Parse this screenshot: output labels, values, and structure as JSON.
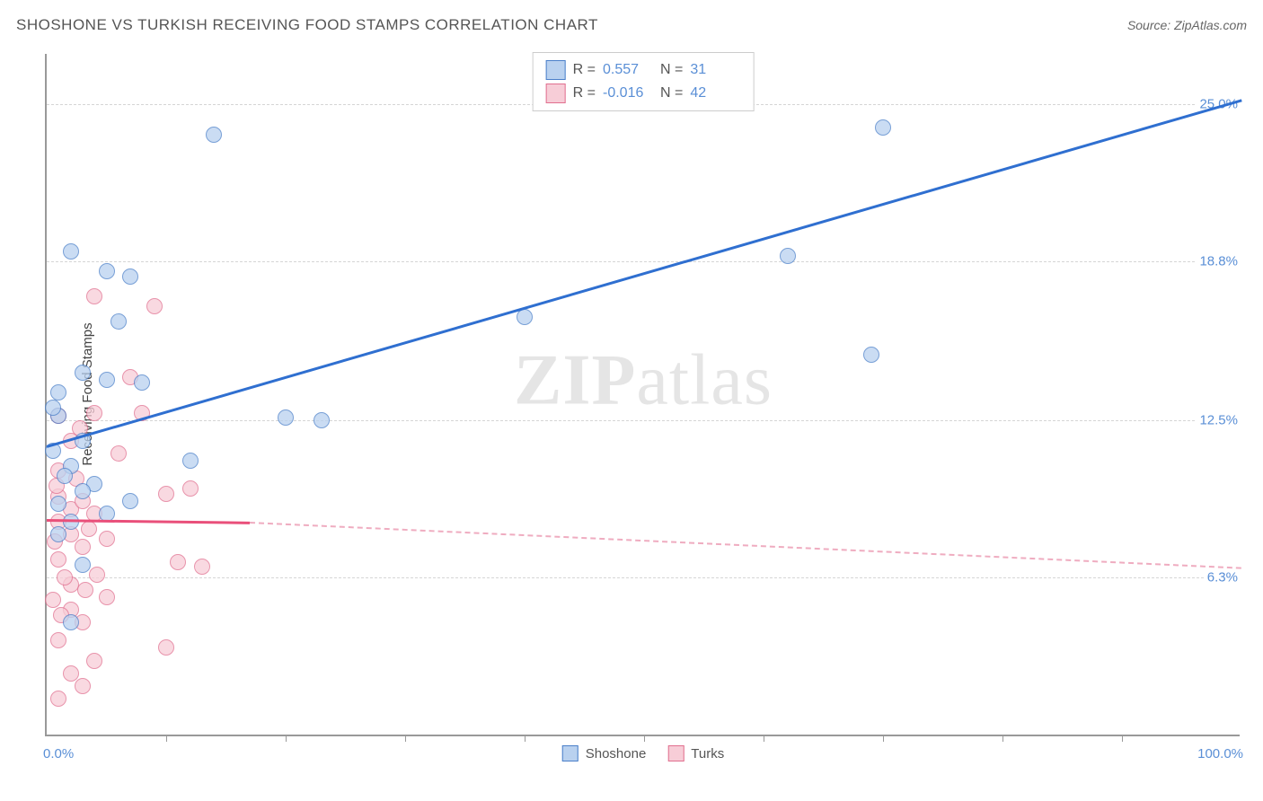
{
  "header": {
    "title": "SHOSHONE VS TURKISH RECEIVING FOOD STAMPS CORRELATION CHART",
    "source": "Source: ZipAtlas.com"
  },
  "chart": {
    "type": "scatter",
    "yaxis_title": "Receiving Food Stamps",
    "xlim": [
      0,
      100
    ],
    "ylim": [
      0,
      27
    ],
    "xlim_labels": {
      "min": "0.0%",
      "max": "100.0%"
    },
    "xticks": [
      10,
      20,
      30,
      40,
      50,
      60,
      70,
      80,
      90
    ],
    "yticks": [
      {
        "v": 6.3,
        "label": "6.3%"
      },
      {
        "v": 12.5,
        "label": "12.5%"
      },
      {
        "v": 18.8,
        "label": "18.8%"
      },
      {
        "v": 25.0,
        "label": "25.0%"
      }
    ],
    "background_color": "#ffffff",
    "grid_color": "#d5d5d5",
    "axis_color": "#999999",
    "tick_label_color": "#5a8fd6",
    "point_radius": 9,
    "point_opacity": 0.75,
    "series": [
      {
        "name": "Shoshone",
        "fill": "#b9d1ef",
        "stroke": "#4a7fc9",
        "R": "0.557",
        "N": "31",
        "trend": {
          "x1": 0,
          "y1": 11.5,
          "x2": 100,
          "y2": 25.2,
          "color": "#2f6fd0",
          "width": 2.5,
          "dashed": false
        },
        "points": [
          [
            2,
            19.2
          ],
          [
            5,
            18.4
          ],
          [
            7,
            18.2
          ],
          [
            3,
            14.4
          ],
          [
            5,
            14.1
          ],
          [
            6,
            16.4
          ],
          [
            3,
            11.7
          ],
          [
            2,
            10.7
          ],
          [
            1,
            12.7
          ],
          [
            1,
            13.6
          ],
          [
            8,
            14.0
          ],
          [
            4,
            10.0
          ],
          [
            7,
            9.3
          ],
          [
            3,
            6.8
          ],
          [
            1,
            9.2
          ],
          [
            2,
            8.5
          ],
          [
            14,
            23.8
          ],
          [
            20,
            12.6
          ],
          [
            23,
            12.5
          ],
          [
            40,
            16.6
          ],
          [
            62,
            19.0
          ],
          [
            70,
            24.1
          ],
          [
            69,
            15.1
          ],
          [
            2,
            4.5
          ],
          [
            5,
            8.8
          ],
          [
            1,
            8.0
          ],
          [
            0.5,
            11.3
          ],
          [
            0.5,
            13.0
          ],
          [
            12,
            10.9
          ],
          [
            3,
            9.7
          ],
          [
            1.5,
            10.3
          ]
        ]
      },
      {
        "name": "Turks",
        "fill": "#f7cdd7",
        "stroke": "#e16f8f",
        "R": "-0.016",
        "N": "42",
        "trend_solid": {
          "x1": 0,
          "y1": 8.6,
          "x2": 17,
          "y2": 8.5,
          "color": "#e94f7a",
          "width": 2.5,
          "dashed": false
        },
        "trend_dashed": {
          "x1": 17,
          "y1": 8.5,
          "x2": 100,
          "y2": 6.7,
          "color": "#efacc0",
          "width": 2,
          "dashed": true
        },
        "points": [
          [
            1,
            8.5
          ],
          [
            2,
            8.0
          ],
          [
            1,
            7.0
          ],
          [
            3,
            7.5
          ],
          [
            2,
            6.0
          ],
          [
            4,
            8.8
          ],
          [
            1,
            9.5
          ],
          [
            2,
            9.0
          ],
          [
            3,
            9.3
          ],
          [
            1,
            10.5
          ],
          [
            5,
            7.8
          ],
          [
            2,
            5.0
          ],
          [
            3,
            4.5
          ],
          [
            1,
            3.8
          ],
          [
            4,
            3.0
          ],
          [
            2,
            2.5
          ],
          [
            1,
            1.5
          ],
          [
            3,
            2.0
          ],
          [
            5,
            5.5
          ],
          [
            6,
            11.2
          ],
          [
            7,
            14.2
          ],
          [
            4,
            17.4
          ],
          [
            9,
            17.0
          ],
          [
            8,
            12.8
          ],
          [
            10,
            9.6
          ],
          [
            12,
            9.8
          ],
          [
            11,
            6.9
          ],
          [
            13,
            6.7
          ],
          [
            10,
            3.5
          ],
          [
            4,
            12.8
          ],
          [
            1,
            12.7
          ],
          [
            2,
            11.7
          ],
          [
            0.8,
            9.9
          ],
          [
            1.5,
            6.3
          ],
          [
            0.5,
            5.4
          ],
          [
            2.5,
            10.2
          ],
          [
            3.5,
            8.2
          ],
          [
            1.2,
            4.8
          ],
          [
            0.7,
            7.7
          ],
          [
            4.2,
            6.4
          ],
          [
            2.8,
            12.2
          ],
          [
            3.2,
            5.8
          ]
        ]
      }
    ],
    "legend_bottom": [
      {
        "label": "Shoshone",
        "fill": "#b9d1ef",
        "stroke": "#4a7fc9"
      },
      {
        "label": "Turks",
        "fill": "#f7cdd7",
        "stroke": "#e16f8f"
      }
    ],
    "watermark": {
      "zip": "ZIP",
      "atlas": "atlas"
    }
  }
}
